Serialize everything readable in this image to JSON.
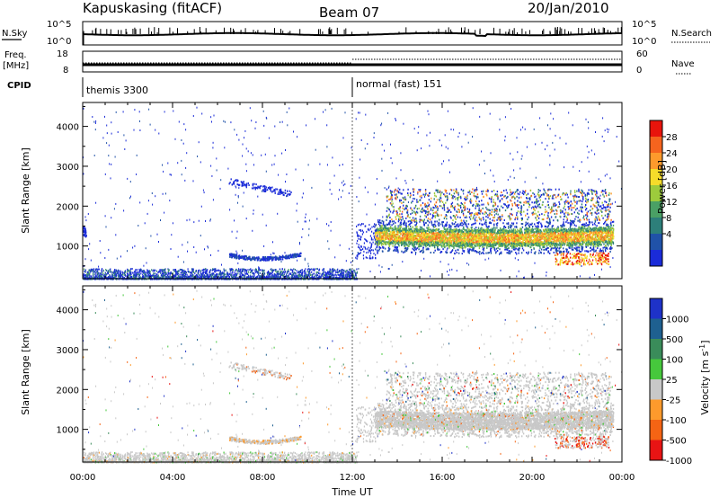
{
  "header": {
    "station": "Kapuskasing (fitACF)",
    "beam": "Beam 07",
    "date": "20/Jan/2010"
  },
  "top_panels": {
    "nsky_label": "N.Sky",
    "nsky_ticks": [
      "10^5",
      "10^0"
    ],
    "nsearch_label": "N.Search",
    "nsearch_ticks": [
      "10^5",
      "10^0"
    ],
    "freq_label_1": "Freq.",
    "freq_label_2": "[MHz]",
    "freq_ticks": [
      "18",
      "8"
    ],
    "nave_label": "Nave",
    "nave_ticks": [
      "60",
      "0"
    ],
    "cpid_label": "CPID",
    "cpid_segments": [
      {
        "label": "themis 3300",
        "start_hour": 0
      },
      {
        "label": "normal (fast) 151",
        "start_hour": 12
      }
    ]
  },
  "chart_data": [
    {
      "type": "heatmap",
      "name": "power-panel",
      "ylabel": "Slant Range [km]",
      "xlabel": "",
      "x_unit": "hours UT",
      "xlim": [
        0,
        24
      ],
      "ylim": [
        180,
        4600
      ],
      "y_ticks": [
        1000,
        2000,
        3000,
        4000
      ],
      "colorbar": {
        "label": "Power [dB]",
        "ticks": [
          "28",
          "24",
          "20",
          "16",
          "12",
          "8",
          "4"
        ],
        "colors": [
          "#e8140c",
          "#f5641e",
          "#fd9a2c",
          "#f5dc2a",
          "#9dcb3c",
          "#4aa065",
          "#2d7f7a",
          "#2052a8",
          "#1a2bd8"
        ]
      }
    },
    {
      "type": "heatmap",
      "name": "velocity-panel",
      "ylabel": "Slant Range [km]",
      "xlabel": "Time UT",
      "x_unit": "hours UT",
      "xlim": [
        0,
        24
      ],
      "ylim": [
        180,
        4600
      ],
      "y_ticks": [
        1000,
        2000,
        3000,
        4000
      ],
      "x_tick_labels": [
        "00:00",
        "04:00",
        "08:00",
        "12:00",
        "16:00",
        "20:00",
        "00:00"
      ],
      "colorbar": {
        "label": "Velocity [m s-1]",
        "label_main": "Velocity [m s",
        "label_exp": "-1",
        "label_end": "]",
        "ticks": [
          "1000",
          "500",
          "100",
          "25",
          "-25",
          "-100",
          "-500",
          "-1000"
        ],
        "colors": [
          "#1e32c8",
          "#1e6090",
          "#3a8c5a",
          "#46c83c",
          "#c8c8c8",
          "#fd9a2c",
          "#f56414",
          "#e81414"
        ]
      }
    }
  ]
}
